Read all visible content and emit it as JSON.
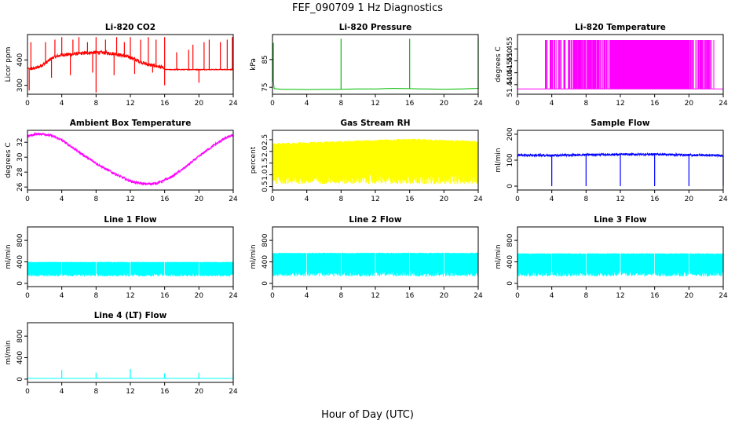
{
  "figure_title": "FEF_090709  1 Hz Diagnostics",
  "x_axis_label": "Hour of Day (UTC)",
  "chart_data": [
    {
      "type": "line",
      "title": "Li-820 CO2",
      "ylabel": "Licor ppm",
      "color": "#ff0000",
      "xlim": [
        0,
        24
      ],
      "x_ticks": [
        0,
        4,
        8,
        12,
        16,
        20,
        24
      ],
      "ylim": [
        265,
        500
      ],
      "y_ticks": [
        300,
        400
      ],
      "series": [
        {
          "x": [
            0,
            0.3,
            1,
            2,
            3,
            4,
            5,
            6,
            7,
            8,
            9,
            10,
            11,
            12,
            13,
            14,
            15,
            15.8,
            16,
            17,
            18,
            19,
            20,
            21,
            22,
            23,
            24
          ],
          "values": [
            368,
            365,
            368,
            385,
            410,
            420,
            422,
            425,
            428,
            430,
            428,
            425,
            418,
            410,
            395,
            382,
            376,
            370,
            362,
            362,
            362,
            362,
            362,
            362,
            362,
            362,
            362
          ]
        }
      ],
      "spikes": {
        "x": [
          0.4,
          2.1,
          3.2,
          4.0,
          5.3,
          6.0,
          7.0,
          8.0,
          9.1,
          10.4,
          11.3,
          12.0,
          13.2,
          14.1,
          15.0,
          16.0,
          17.4,
          18.8,
          19.3,
          20.6,
          21.2,
          22.5,
          23.3,
          23.9
        ],
        "values": [
          470,
          470,
          480,
          490,
          480,
          490,
          470,
          490,
          480,
          490,
          470,
          490,
          480,
          490,
          480,
          490,
          430,
          440,
          460,
          470,
          480,
          470,
          480,
          490
        ]
      },
      "dips": {
        "x": [
          0.2,
          2.8,
          5.0,
          7.6,
          8.0,
          10.1,
          12.5,
          14.6,
          16.0,
          20.0,
          24.0
        ],
        "values": [
          280,
          330,
          340,
          350,
          272,
          340,
          345,
          350,
          300,
          310,
          320
        ]
      }
    },
    {
      "type": "line",
      "title": "Li-820 Pressure",
      "ylabel": "kPa",
      "color": "#00bb00",
      "xlim": [
        0,
        24
      ],
      "x_ticks": [
        0,
        4,
        8,
        12,
        16,
        20,
        24
      ],
      "ylim": [
        72.5,
        94
      ],
      "y_ticks": [
        75,
        85
      ],
      "series": [
        {
          "x": [
            0,
            0.2,
            1,
            4,
            8,
            10,
            12,
            14,
            16,
            18,
            20,
            22,
            24
          ],
          "values": [
            80,
            74.5,
            74.3,
            74.2,
            74.3,
            74.4,
            74.4,
            74.6,
            74.5,
            74.4,
            74.3,
            74.4,
            74.6
          ]
        }
      ],
      "spikes": {
        "x": [
          0.1,
          8.0,
          16.0,
          24.0
        ],
        "values": [
          91,
          92.5,
          92.5,
          92.5
        ]
      }
    },
    {
      "type": "line",
      "title": "Li-820 Temperature",
      "ylabel": "degrees C",
      "color": "#ff00ff",
      "xlim": [
        0,
        24
      ],
      "x_ticks": [
        0,
        4,
        8,
        12,
        16,
        20,
        24
      ],
      "ylim": [
        51.436,
        51.461
      ],
      "y_ticks": [
        51.44,
        51.445,
        51.45,
        51.455
      ],
      "y_tick_labels": [
        "51.440",
        "51.445",
        "51.450",
        "51.455"
      ],
      "values_low": 51.4382,
      "values_high": 51.4587,
      "toggle_regions": [
        {
          "from": 3.1,
          "to": 6.5,
          "density": 0.25
        },
        {
          "from": 6.5,
          "to": 9.5,
          "density": 0.45
        },
        {
          "from": 9.5,
          "to": 10.8,
          "density": 0.25
        },
        {
          "from": 10.8,
          "to": 18.6,
          "density": 0.95
        },
        {
          "from": 18.6,
          "to": 20.5,
          "density": 0.5
        },
        {
          "from": 20.5,
          "to": 23.0,
          "density": 0.2
        }
      ]
    },
    {
      "type": "line",
      "title": "Ambient Box Temperature",
      "ylabel": "degrees C",
      "color": "#ff00ff",
      "xlim": [
        0,
        24
      ],
      "x_ticks": [
        0,
        4,
        8,
        12,
        16,
        20,
        24
      ],
      "ylim": [
        25.6,
        33.6
      ],
      "y_ticks": [
        26,
        28,
        30,
        32
      ],
      "series": [
        {
          "x": [
            0,
            1,
            2,
            3,
            4,
            5,
            6,
            7,
            8,
            9,
            10,
            11,
            12,
            13,
            14,
            15,
            16,
            17,
            18,
            19,
            20,
            21,
            22,
            23,
            24
          ],
          "values": [
            32.8,
            33.1,
            33.1,
            32.8,
            32.3,
            31.5,
            30.7,
            29.9,
            29.2,
            28.5,
            27.9,
            27.3,
            26.8,
            26.5,
            26.4,
            26.5,
            26.9,
            27.5,
            28.3,
            29.2,
            30.1,
            31.0,
            31.8,
            32.5,
            33.0
          ]
        }
      ],
      "noise": 0.35
    },
    {
      "type": "line",
      "title": "Gas Stream RH",
      "ylabel": "percent",
      "color": "#ffff00",
      "xlim": [
        0,
        24
      ],
      "x_ticks": [
        0,
        4,
        8,
        12,
        16,
        20,
        24
      ],
      "ylim": [
        0.35,
        2.9
      ],
      "y_ticks": [
        0.5,
        1.0,
        1.5,
        2.0,
        2.5
      ],
      "y_tick_labels": [
        "0.5",
        "1.0",
        "1.5",
        "2.0",
        "2.5"
      ],
      "band": {
        "low": 0.6,
        "high": 2.55
      },
      "series": [
        {
          "x": [
            0,
            4,
            8,
            12,
            16,
            20,
            24
          ],
          "values": [
            2.35,
            2.4,
            2.45,
            2.5,
            2.55,
            2.5,
            2.45
          ]
        }
      ]
    },
    {
      "type": "line",
      "title": "Sample Flow",
      "ylabel": "ml/min",
      "color": "#0000ff",
      "xlim": [
        0,
        24
      ],
      "x_ticks": [
        0,
        4,
        8,
        12,
        16,
        20,
        24
      ],
      "ylim": [
        -15,
        215
      ],
      "y_ticks": [
        0,
        100,
        200
      ],
      "series": [
        {
          "x": [
            0,
            4,
            8,
            12,
            16,
            20,
            24
          ],
          "values": [
            120,
            118,
            121,
            122,
            123,
            120,
            118
          ]
        }
      ],
      "dips": {
        "x": [
          4,
          8,
          12,
          16,
          20,
          24
        ],
        "values": [
          0,
          0,
          0,
          0,
          0,
          0
        ]
      }
    },
    {
      "type": "line",
      "title": "Line 1 Flow",
      "ylabel": "ml/min",
      "color": "#00ffff",
      "xlim": [
        0,
        24
      ],
      "x_ticks": [
        0,
        4,
        8,
        12,
        16,
        20,
        24
      ],
      "ylim": [
        -60,
        1050
      ],
      "y_ticks": [
        0,
        400,
        800
      ],
      "band": {
        "low": 130,
        "high": 400
      },
      "gaps": [
        4,
        8,
        12,
        16,
        20,
        24
      ]
    },
    {
      "type": "line",
      "title": "Line 2 Flow",
      "ylabel": "ml/min",
      "color": "#00ffff",
      "xlim": [
        0,
        24
      ],
      "x_ticks": [
        0,
        4,
        8,
        12,
        16,
        20,
        24
      ],
      "ylim": [
        -60,
        1050
      ],
      "y_ticks": [
        0,
        400,
        800
      ],
      "band": {
        "low": 130,
        "high": 570
      },
      "gaps": [
        4,
        8,
        12,
        16,
        20,
        24
      ]
    },
    {
      "type": "line",
      "title": "Line 3 Flow",
      "ylabel": "ml/min",
      "color": "#00ffff",
      "xlim": [
        0,
        24
      ],
      "x_ticks": [
        0,
        4,
        8,
        12,
        16,
        20,
        24
      ],
      "ylim": [
        -60,
        1050
      ],
      "y_ticks": [
        0,
        400,
        800
      ],
      "band": {
        "low": 130,
        "high": 560
      },
      "gaps": [
        4,
        8,
        12,
        16,
        20,
        24
      ]
    },
    {
      "type": "line",
      "title": "Line 4 (LT) Flow",
      "ylabel": "ml/min",
      "color": "#00ffff",
      "xlim": [
        0,
        24
      ],
      "x_ticks": [
        0,
        4,
        8,
        12,
        16,
        20,
        24
      ],
      "ylim": [
        -60,
        1050
      ],
      "y_ticks": [
        0,
        400,
        800
      ],
      "series": [
        {
          "x": [
            0,
            4,
            8,
            12,
            16,
            20,
            24
          ],
          "values": [
            15,
            15,
            15,
            15,
            15,
            15,
            15
          ]
        }
      ],
      "spikes": {
        "x": [
          4,
          8,
          12,
          16,
          20,
          24
        ],
        "values": [
          170,
          120,
          190,
          110,
          120,
          110
        ]
      }
    }
  ]
}
